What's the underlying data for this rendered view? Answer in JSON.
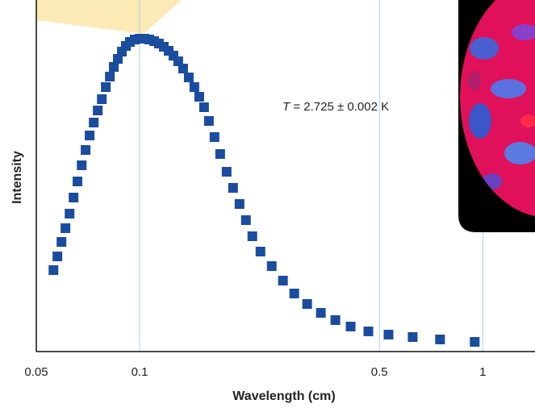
{
  "chart_data": {
    "type": "scatter",
    "x_label": "Wavelength (cm)",
    "y_label": "Intensity",
    "annotation": {
      "variable": "T",
      "text": "= 2.725 ± 0.002 K"
    },
    "x_scale": "log",
    "xlim": [
      0.05,
      1.42
    ],
    "xticks": [
      0.05,
      0.1,
      0.5,
      1
    ],
    "ylim": [
      0,
      436
    ],
    "grid": true,
    "color": "#1a4c9f",
    "x": [
      0.0561,
      0.0576,
      0.0592,
      0.0608,
      0.0625,
      0.0642,
      0.0659,
      0.0678,
      0.0696,
      0.0715,
      0.0735,
      0.0755,
      0.0776,
      0.0797,
      0.0819,
      0.0841,
      0.0864,
      0.0888,
      0.0912,
      0.0937,
      0.0968,
      0.1,
      0.1033,
      0.1067,
      0.1102,
      0.1138,
      0.1176,
      0.1215,
      0.1255,
      0.1296,
      0.1339,
      0.1391,
      0.1444,
      0.1492,
      0.1541,
      0.1592,
      0.1653,
      0.1717,
      0.1793,
      0.1872,
      0.1955,
      0.2041,
      0.2131,
      0.225,
      0.2427,
      0.2617,
      0.2823,
      0.3078,
      0.3375,
      0.372,
      0.4121,
      0.4642,
      0.5314,
      0.6249,
      0.7508,
      0.9474
    ],
    "values": [
      101,
      118,
      136,
      153,
      171,
      191,
      211,
      231,
      250,
      268,
      284,
      299,
      313,
      328,
      341,
      353,
      363,
      372,
      379,
      384,
      387,
      388,
      388,
      387,
      385,
      382,
      378,
      373,
      367,
      360,
      351,
      340,
      328,
      316,
      303,
      286,
      266,
      245,
      223,
      203,
      183,
      163,
      143,
      124,
      106,
      88,
      72,
      59,
      48,
      39,
      31,
      25,
      21,
      18,
      15,
      12
    ]
  }
}
